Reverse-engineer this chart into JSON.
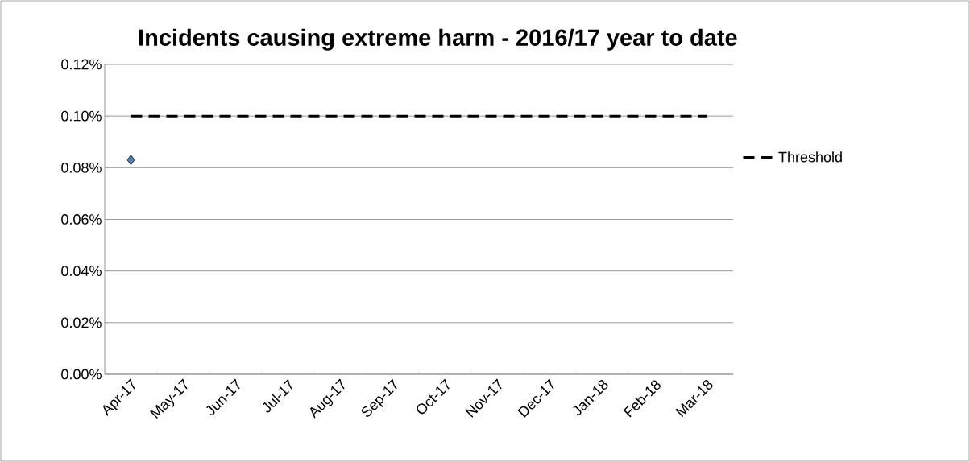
{
  "chart_data": {
    "type": "line",
    "title": "Incidents causing extreme harm - 2016/17 year to date",
    "categories": [
      "Apr-17",
      "May-17",
      "Jun-17",
      "Jul-17",
      "Aug-17",
      "Sep-17",
      "Oct-17",
      "Nov-17",
      "Dec-17",
      "Jan-18",
      "Feb-18",
      "Mar-18"
    ],
    "series": [
      {
        "type": "scatter",
        "color": "#4f81bd",
        "marker": "diamond",
        "values": [
          0.083,
          null,
          null,
          null,
          null,
          null,
          null,
          null,
          null,
          null,
          null,
          null
        ]
      },
      {
        "name": "Threshold",
        "color": "#000000",
        "line_style": "dashed",
        "marker": "none",
        "values": [
          0.1,
          0.1,
          0.1,
          0.1,
          0.1,
          0.1,
          0.1,
          0.1,
          0.1,
          0.1,
          0.1,
          0.1
        ]
      }
    ],
    "ylim": [
      0,
      0.12
    ],
    "yticks": [
      {
        "value": 0,
        "label": "0.00%"
      },
      {
        "value": 0.02,
        "label": "0.02%"
      },
      {
        "value": 0.04,
        "label": "0.04%"
      },
      {
        "value": 0.06,
        "label": "0.06%"
      },
      {
        "value": 0.08,
        "label": "0.08%"
      },
      {
        "value": 0.1,
        "label": "0.10%"
      },
      {
        "value": 0.12,
        "label": "0.12%"
      }
    ],
    "grid": "y",
    "legend": "right"
  }
}
